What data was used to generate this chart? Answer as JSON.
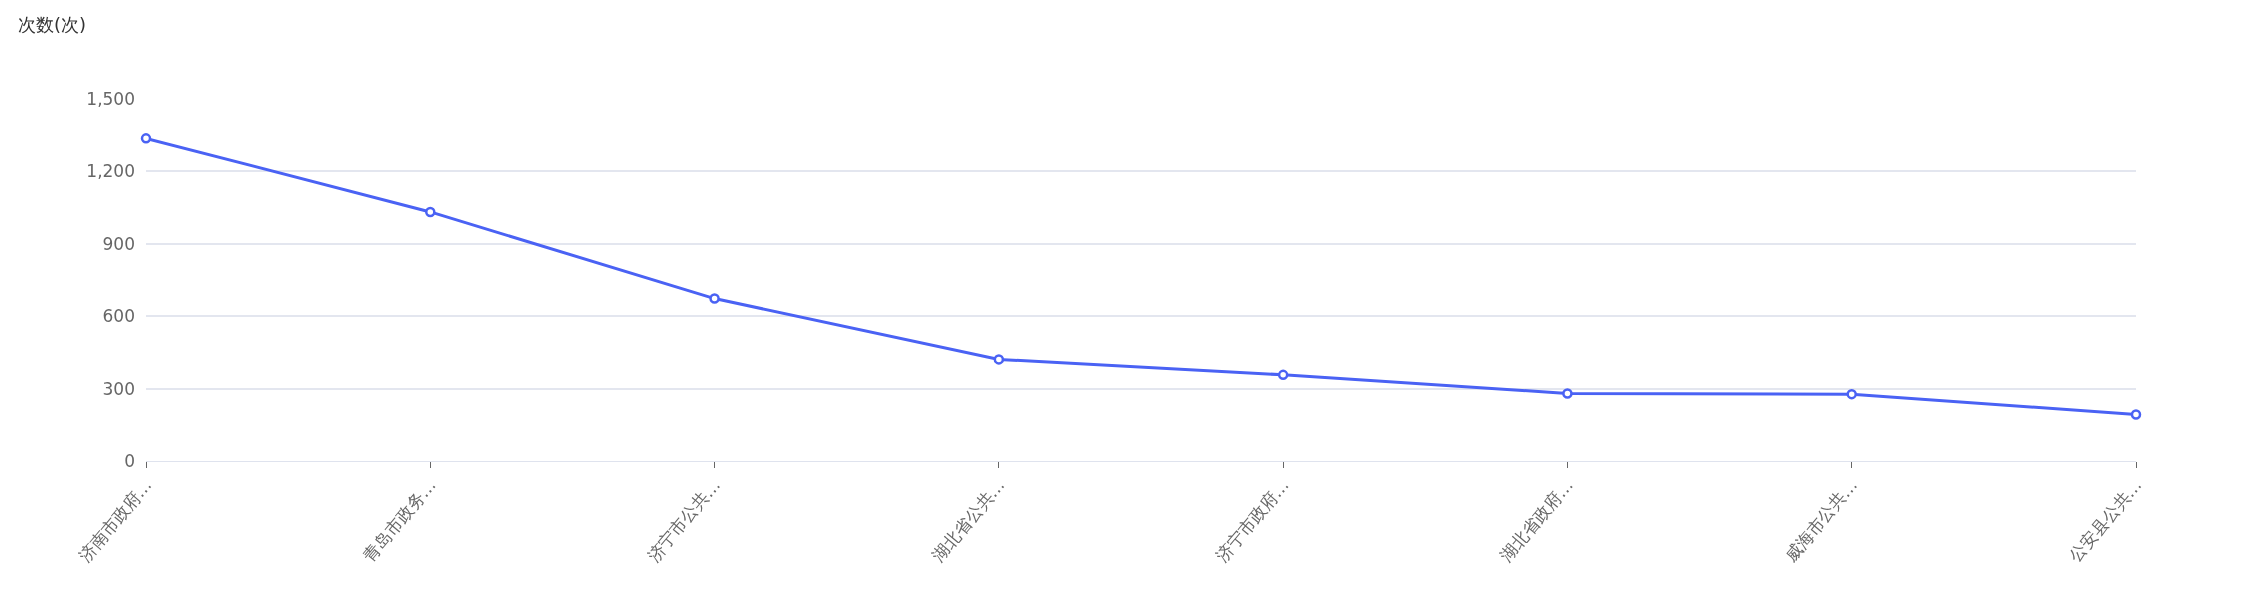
{
  "chart_data": {
    "type": "line",
    "ylabel": "次数(次)",
    "categories": [
      "济南市政府…",
      "青岛市政务…",
      "济宁市公共…",
      "湖北省公共…",
      "济宁市政府…",
      "湖北省政府…",
      "威海市公共…",
      "公安县公共…"
    ],
    "series": [
      {
        "color": "#4a62f4",
        "values": [
          1337,
          1032,
          673,
          421,
          357,
          280,
          277,
          193
        ]
      }
    ],
    "ylim": [
      0,
      1500
    ],
    "yticks": [
      {
        "value": 0,
        "label": "0"
      },
      {
        "value": 300,
        "label": "300"
      },
      {
        "value": 600,
        "label": "600"
      },
      {
        "value": 900,
        "label": "900"
      },
      {
        "value": 1200,
        "label": "1,200"
      },
      {
        "value": 1500,
        "label": "1,500"
      }
    ],
    "grid": "y",
    "marker": "circle",
    "line_style": "solid",
    "legend": false
  }
}
